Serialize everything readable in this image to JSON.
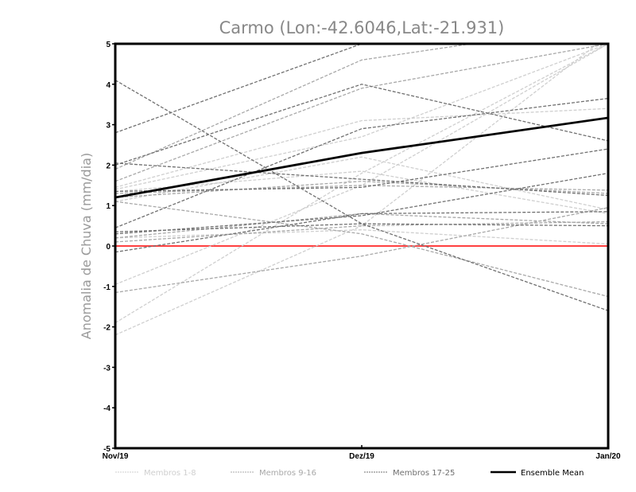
{
  "chart_data": {
    "type": "line",
    "title": "Carmo (Lon:-42.6046,Lat:-21.931)",
    "xlabel": "",
    "ylabel": "Anomalia de Chuva (mm/dia)",
    "categories": [
      "Nov/19",
      "Dez/19",
      "Jan/20"
    ],
    "ylim": [
      -5,
      5
    ],
    "yticks": [
      "5",
      "4",
      "3",
      "2",
      "1",
      "0",
      "-1",
      "-2",
      "-3",
      "-4",
      "-5"
    ],
    "ytick_values": [
      5,
      4,
      3,
      2,
      1,
      0,
      -1,
      -2,
      -3,
      -4,
      -5
    ],
    "grid": false,
    "legend_position": "bottom",
    "zero_line_color": "#ff4040",
    "groups": [
      {
        "name": "Membros 1-8",
        "color": "#cfcfcf",
        "members": [
          [
            -0.95,
            1.5,
            5.0
          ],
          [
            -1.9,
            1.8,
            5.0
          ],
          [
            -2.2,
            0.5,
            5.2
          ],
          [
            1.45,
            3.1,
            3.4
          ],
          [
            1.4,
            2.7,
            5.0
          ],
          [
            1.1,
            2.2,
            0.9
          ],
          [
            0.2,
            0.4,
            0.05
          ],
          [
            1.35,
            1.85,
            0.8
          ]
        ]
      },
      {
        "name": "Membros 9-16",
        "color": "#a8a8a8",
        "members": [
          [
            1.6,
            3.9,
            5.0
          ],
          [
            1.9,
            4.6,
            5.5
          ],
          [
            -1.15,
            -0.25,
            0.95
          ],
          [
            1.3,
            1.5,
            1.38
          ],
          [
            0.2,
            0.8,
            0.55
          ],
          [
            1.2,
            1.6,
            1.3
          ],
          [
            1.1,
            0.3,
            -1.25
          ],
          [
            0.1,
            0.5,
            0.6
          ]
        ]
      },
      {
        "name": "Membros 17-25",
        "color": "#707070",
        "members": [
          [
            4.1,
            0.55,
            -1.6
          ],
          [
            2.8,
            5.0,
            6.5
          ],
          [
            2.0,
            4.0,
            2.6
          ],
          [
            0.45,
            2.9,
            3.65
          ],
          [
            2.05,
            1.65,
            1.25
          ],
          [
            -0.15,
            0.8,
            0.85
          ],
          [
            0.3,
            0.75,
            1.8
          ],
          [
            1.35,
            1.45,
            2.4
          ],
          [
            0.35,
            0.55,
            0.5
          ]
        ]
      }
    ],
    "ensemble_mean": {
      "name": "Ensemble Mean",
      "color": "#000000",
      "values": [
        1.2,
        2.3,
        3.17
      ]
    }
  }
}
